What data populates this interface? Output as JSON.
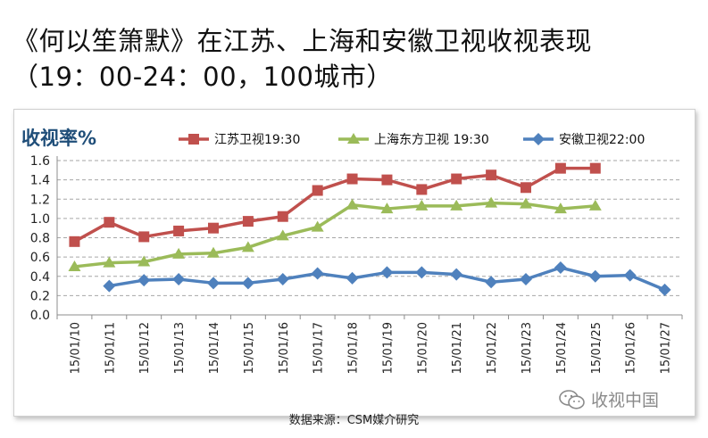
{
  "title": "《何以笙箫默》在江苏、上海和安徽卫视收视表现\n（19：00-24：00，100城市）",
  "source": "数据来源：CSM媒介研究",
  "watermark": "收视中国",
  "icons": {
    "watermark_icon": "wechat-icon"
  },
  "chart_data": {
    "type": "line",
    "ylabel": "收视率%",
    "ylim": [
      0,
      1.6
    ],
    "yticks": [
      "0.0",
      "0.2",
      "0.4",
      "0.6",
      "0.8",
      "1.0",
      "1.2",
      "1.4",
      "1.6"
    ],
    "grid": true,
    "legend_position": "top",
    "categories": [
      "15/01/10",
      "15/01/11",
      "15/01/12",
      "15/01/13",
      "15/01/14",
      "15/01/15",
      "15/01/16",
      "15/01/17",
      "15/01/18",
      "15/01/19",
      "15/01/20",
      "15/01/21",
      "15/01/22",
      "15/01/23",
      "15/01/24",
      "15/01/25",
      "15/01/26",
      "15/01/27"
    ],
    "series": [
      {
        "name": "江苏卫视19:30",
        "color": "#c0504d",
        "marker": "square",
        "values": [
          0.76,
          0.96,
          0.81,
          0.87,
          0.9,
          0.97,
          1.02,
          1.29,
          1.41,
          1.4,
          1.3,
          1.41,
          1.45,
          1.32,
          1.52,
          1.52,
          null,
          null
        ]
      },
      {
        "name": "上海东方卫视 19:30",
        "color": "#9bbb59",
        "marker": "triangle",
        "values": [
          0.5,
          0.54,
          0.55,
          0.63,
          0.64,
          0.7,
          0.82,
          0.91,
          1.14,
          1.1,
          1.13,
          1.13,
          1.16,
          1.15,
          1.1,
          1.13,
          null,
          null
        ]
      },
      {
        "name": "安徽卫视22:00",
        "color": "#4f81bd",
        "marker": "diamond",
        "values": [
          null,
          0.3,
          0.36,
          0.37,
          0.33,
          0.33,
          0.37,
          0.43,
          0.38,
          0.44,
          0.44,
          0.42,
          0.34,
          0.37,
          0.49,
          0.4,
          0.41,
          0.26
        ]
      }
    ]
  }
}
